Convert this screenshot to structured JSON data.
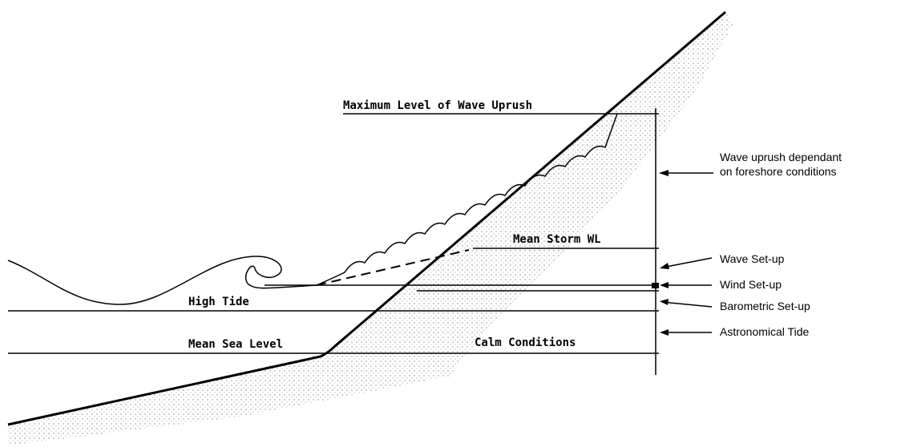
{
  "labels": {
    "max_uprush": "Maximum Level of Wave Uprush",
    "wave_uprush": [
      "Wave uprush dependant",
      "on foreshore conditions"
    ],
    "mean_storm": "Mean Storm WL",
    "wave_setup": "Wave Set-up",
    "wind_setup": "Wind Set-up",
    "high_tide": "High Tide",
    "barometric": "Barometric Set-up",
    "astronomical": "Astronomical Tide",
    "mean_sea_level": "Mean Sea Level",
    "calm": "Calm Conditions"
  }
}
